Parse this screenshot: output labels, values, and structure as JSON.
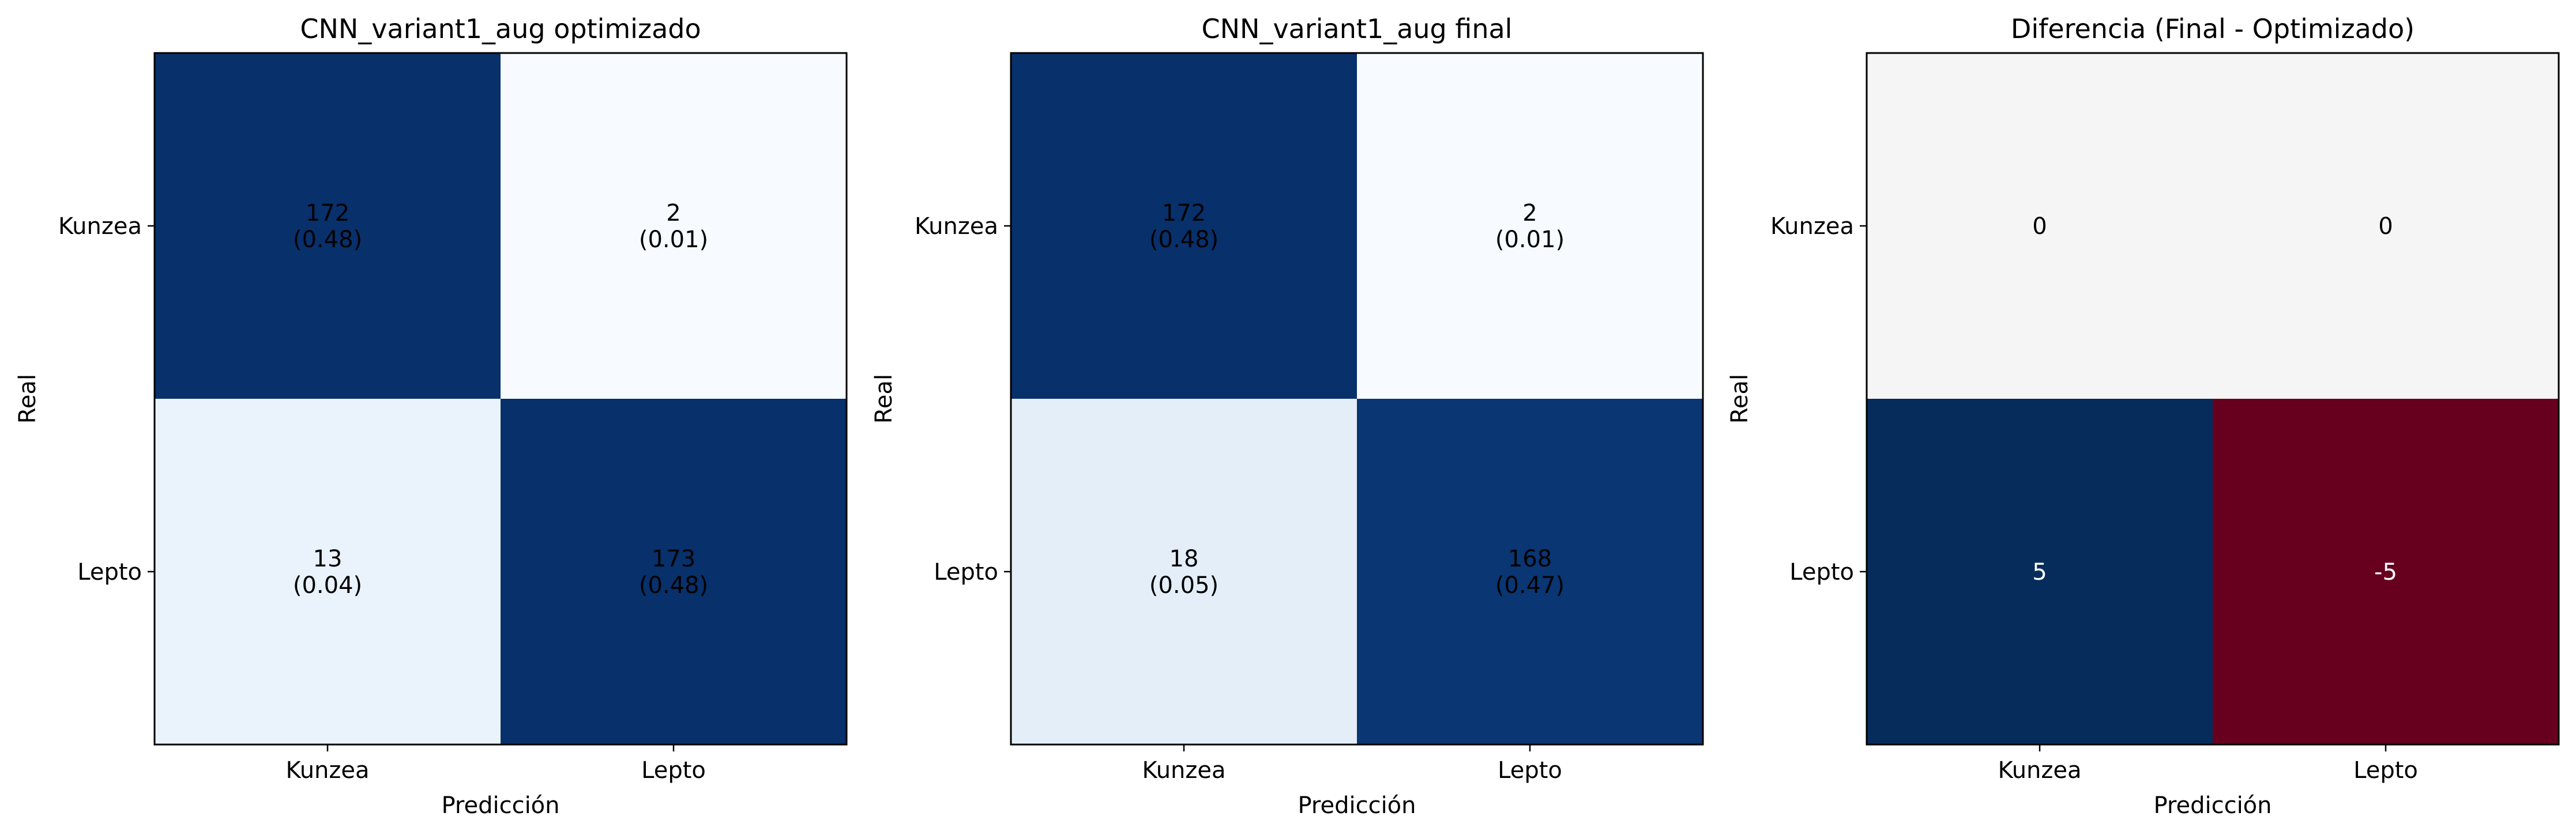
{
  "chart_data": [
    {
      "type": "heatmap",
      "title": "CNN_variant1_aug optimizado",
      "xlabel": "Predicción",
      "ylabel": "Real",
      "x_categories": [
        "Kunzea",
        "Lepto"
      ],
      "y_categories": [
        "Kunzea",
        "Lepto"
      ],
      "cmap": "Blues",
      "values": [
        [
          172,
          2
        ],
        [
          13,
          173
        ]
      ],
      "labels": [
        [
          "172\n(0.48)",
          "2\n(0.01)"
        ],
        [
          "13\n(0.04)",
          "173\n(0.48)"
        ]
      ],
      "colors": [
        [
          "#08306b",
          "#f7fbff"
        ],
        [
          "#eaf2fb",
          "#08306b"
        ]
      ],
      "text_colors": [
        [
          "#000000",
          "#000000"
        ],
        [
          "#000000",
          "#000000"
        ]
      ]
    },
    {
      "type": "heatmap",
      "title": "CNN_variant1_aug final",
      "xlabel": "Predicción",
      "ylabel": "Real",
      "x_categories": [
        "Kunzea",
        "Lepto"
      ],
      "y_categories": [
        "Kunzea",
        "Lepto"
      ],
      "cmap": "Blues",
      "values": [
        [
          172,
          2
        ],
        [
          18,
          168
        ]
      ],
      "labels": [
        [
          "172\n(0.48)",
          "2\n(0.01)"
        ],
        [
          "18\n(0.05)",
          "168\n(0.47)"
        ]
      ],
      "colors": [
        [
          "#08306b",
          "#f7fbff"
        ],
        [
          "#e3eef8",
          "#0a3673"
        ]
      ],
      "text_colors": [
        [
          "#000000",
          "#000000"
        ],
        [
          "#000000",
          "#000000"
        ]
      ]
    },
    {
      "type": "heatmap",
      "title": "Diferencia (Final - Optimizado)",
      "xlabel": "Predicción",
      "ylabel": "Real",
      "x_categories": [
        "Kunzea",
        "Lepto"
      ],
      "y_categories": [
        "Kunzea",
        "Lepto"
      ],
      "cmap": "RdBu",
      "values": [
        [
          0,
          0
        ],
        [
          5,
          -5
        ]
      ],
      "labels": [
        [
          "0",
          "0"
        ],
        [
          "5",
          "-5"
        ]
      ],
      "colors": [
        [
          "#f5f5f5",
          "#f5f5f5"
        ],
        [
          "#062c5c",
          "#67001f"
        ]
      ],
      "text_colors": [
        [
          "#000000",
          "#000000"
        ],
        [
          "#ffffff",
          "#ffffff"
        ]
      ]
    }
  ]
}
